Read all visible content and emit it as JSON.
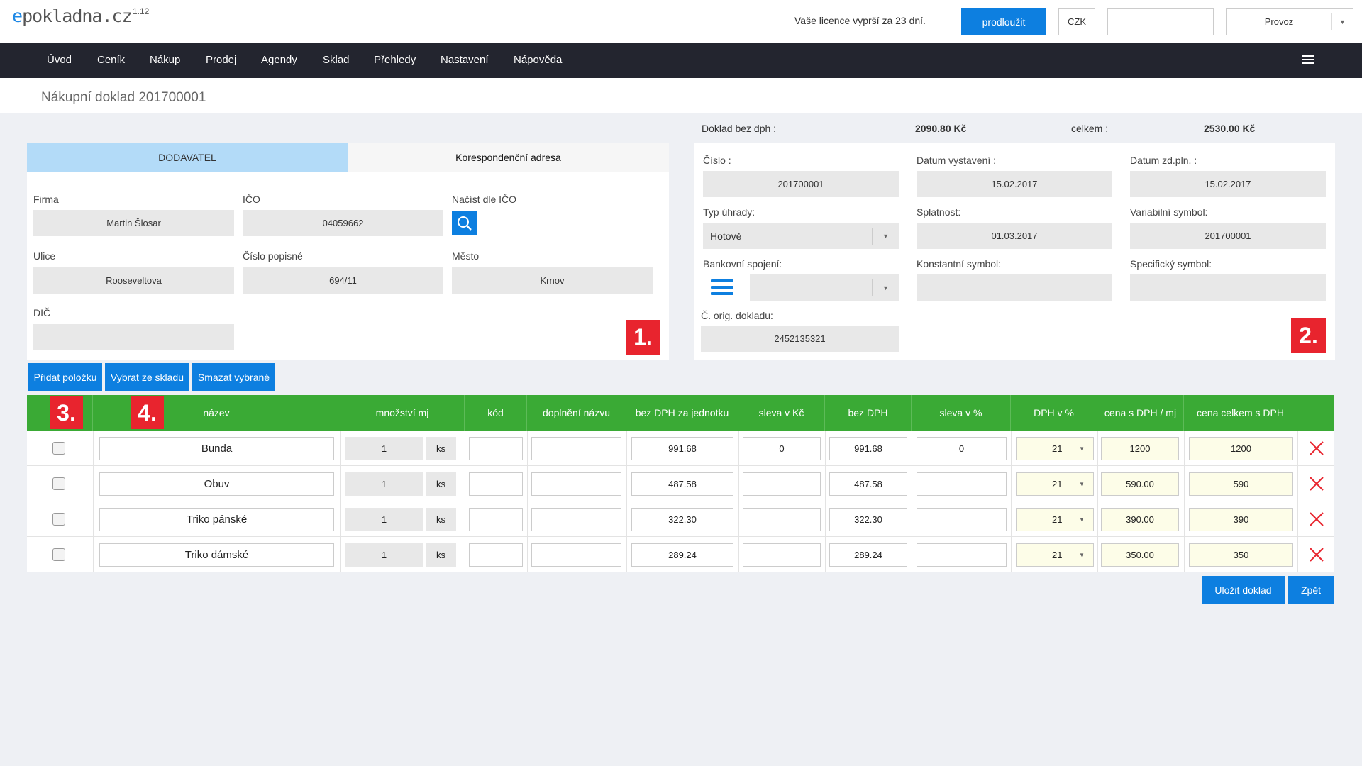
{
  "header": {
    "logo_e": "e",
    "logo_rest": "pokladna.cz",
    "version": "1.12",
    "licence_text": "Vaše licence vyprší za 23 dní.",
    "prolong_label": "prodloužit",
    "currency_label": "CZK",
    "mode_label": "Provoz"
  },
  "nav": {
    "items": [
      "Úvod",
      "Ceník",
      "Nákup",
      "Prodej",
      "Agendy",
      "Sklad",
      "Přehledy",
      "Nastavení",
      "Nápověda"
    ]
  },
  "page": {
    "title": "Nákupní doklad 201700001"
  },
  "supplier": {
    "tab_supplier": "DODAVATEL",
    "tab_address": "Korespondenční adresa",
    "firma_label": "Firma",
    "firma_value": "Martin Šlosar",
    "ico_label": "IČO",
    "ico_value": "04059662",
    "load_label": "Načíst dle IČO",
    "ulice_label": "Ulice",
    "ulice_value": "Rooseveltova",
    "cp_label": "Číslo popisné",
    "cp_value": "694/11",
    "mesto_label": "Město",
    "mesto_value": "Krnov",
    "dic_label": "DIČ",
    "dic_value": "",
    "badge": "1."
  },
  "summary": {
    "net_label": "Doklad bez dph :",
    "net_value": "2090.80 Kč",
    "total_label": "celkem :",
    "total_value": "2530.00 Kč"
  },
  "document": {
    "cislo_label": "Číslo :",
    "cislo_value": "201700001",
    "datum_vyst_label": "Datum vystavení :",
    "datum_vyst_value": "15.02.2017",
    "datum_zdpln_label": "Datum zd.pln. :",
    "datum_zdpln_value": "15.02.2017",
    "typ_label": "Typ úhrady:",
    "typ_value": "Hotově",
    "splatnost_label": "Splatnost:",
    "splatnost_value": "01.03.2017",
    "vs_label": "Variabilní symbol:",
    "vs_value": "201700001",
    "bank_label": "Bankovní spojení:",
    "ks_label": "Konstantní symbol:",
    "ss_label": "Specifický symbol:",
    "orig_label": "Č. orig. dokladu:",
    "orig_value": "2452135321",
    "badge": "2."
  },
  "actions": {
    "add": "Přidat položku",
    "from_stock": "Vybrat ze skladu",
    "delete_selected": "Smazat vybrané"
  },
  "table": {
    "badge3": "3.",
    "badge4": "4.",
    "headers": {
      "nazev": "název",
      "mnozstvi": "množství mj",
      "kod": "kód",
      "doplneni": "doplnění názvu",
      "bez_dph_jed": "bez DPH za jednotku",
      "sleva_kc": "sleva v Kč",
      "bez_dph": "bez DPH",
      "sleva_pct": "sleva v %",
      "dph_pct": "DPH v %",
      "cena_mj": "cena s DPH / mj",
      "cena_celkem": "cena celkem s DPH"
    },
    "rows": [
      {
        "nazev": "Bunda",
        "qty": "1",
        "unit": "ks",
        "kod": "",
        "doplneni": "",
        "unit_net": "991.68",
        "sleva_kc": "0",
        "net": "991.68",
        "sleva_pct": "0",
        "dph": "21",
        "price_unit": "1200",
        "price_total": "1200"
      },
      {
        "nazev": "Obuv",
        "qty": "1",
        "unit": "ks",
        "kod": "",
        "doplneni": "",
        "unit_net": "487.58",
        "sleva_kc": "",
        "net": "487.58",
        "sleva_pct": "",
        "dph": "21",
        "price_unit": "590.00",
        "price_total": "590"
      },
      {
        "nazev": "Triko pánské",
        "qty": "1",
        "unit": "ks",
        "kod": "",
        "doplneni": "",
        "unit_net": "322.30",
        "sleva_kc": "",
        "net": "322.30",
        "sleva_pct": "",
        "dph": "21",
        "price_unit": "390.00",
        "price_total": "390"
      },
      {
        "nazev": "Triko dámské",
        "qty": "1",
        "unit": "ks",
        "kod": "",
        "doplneni": "",
        "unit_net": "289.24",
        "sleva_kc": "",
        "net": "289.24",
        "sleva_pct": "",
        "dph": "21",
        "price_unit": "350.00",
        "price_total": "350"
      }
    ]
  },
  "footer": {
    "save": "Uložit doklad",
    "back": "Zpět"
  },
  "colors": {
    "accent": "#0d7fe0",
    "table_header": "#3aaa35",
    "badge": "#e8242e",
    "delete": "#e8242e"
  }
}
